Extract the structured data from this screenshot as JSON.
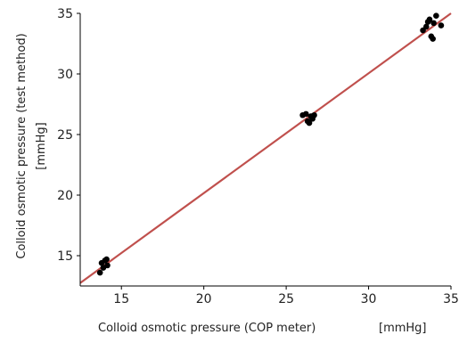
{
  "chart_data": {
    "type": "scatter",
    "title": "",
    "xlabel": "Colloid osmotic pressure (COP meter)",
    "xlabel_unit": "[mmHg]",
    "ylabel": "Colloid osmotic pressure (test method)",
    "ylabel_unit": "[mmHg]",
    "xlim": [
      12.5,
      35
    ],
    "ylim": [
      12.5,
      35
    ],
    "xticks": [
      15,
      20,
      25,
      30,
      35
    ],
    "yticks": [
      15,
      20,
      25,
      30,
      35
    ],
    "grid": false,
    "legend": "none",
    "colors": {
      "points": "#000000",
      "fit_line": "#c0504d",
      "axes": "#000000"
    },
    "series": [
      {
        "points": [
          {
            "x": 13.7,
            "y": 13.6
          },
          {
            "x": 13.9,
            "y": 14.0
          },
          {
            "x": 13.8,
            "y": 14.4
          },
          {
            "x": 14.0,
            "y": 14.6
          },
          {
            "x": 14.1,
            "y": 14.7
          },
          {
            "x": 14.15,
            "y": 14.2
          },
          {
            "x": 26.0,
            "y": 26.6
          },
          {
            "x": 26.2,
            "y": 26.7
          },
          {
            "x": 26.3,
            "y": 26.1
          },
          {
            "x": 26.4,
            "y": 25.95
          },
          {
            "x": 26.5,
            "y": 26.5
          },
          {
            "x": 26.6,
            "y": 26.3
          },
          {
            "x": 26.7,
            "y": 26.6
          },
          {
            "x": 33.3,
            "y": 33.6
          },
          {
            "x": 33.5,
            "y": 33.9
          },
          {
            "x": 33.6,
            "y": 34.3
          },
          {
            "x": 33.7,
            "y": 34.5
          },
          {
            "x": 33.8,
            "y": 33.1
          },
          {
            "x": 33.9,
            "y": 32.9
          },
          {
            "x": 33.95,
            "y": 34.2
          },
          {
            "x": 34.1,
            "y": 34.8
          },
          {
            "x": 34.4,
            "y": 34.0
          }
        ]
      }
    ],
    "fit_line": {
      "x": [
        12.5,
        35
      ],
      "y": [
        12.75,
        35
      ]
    }
  }
}
